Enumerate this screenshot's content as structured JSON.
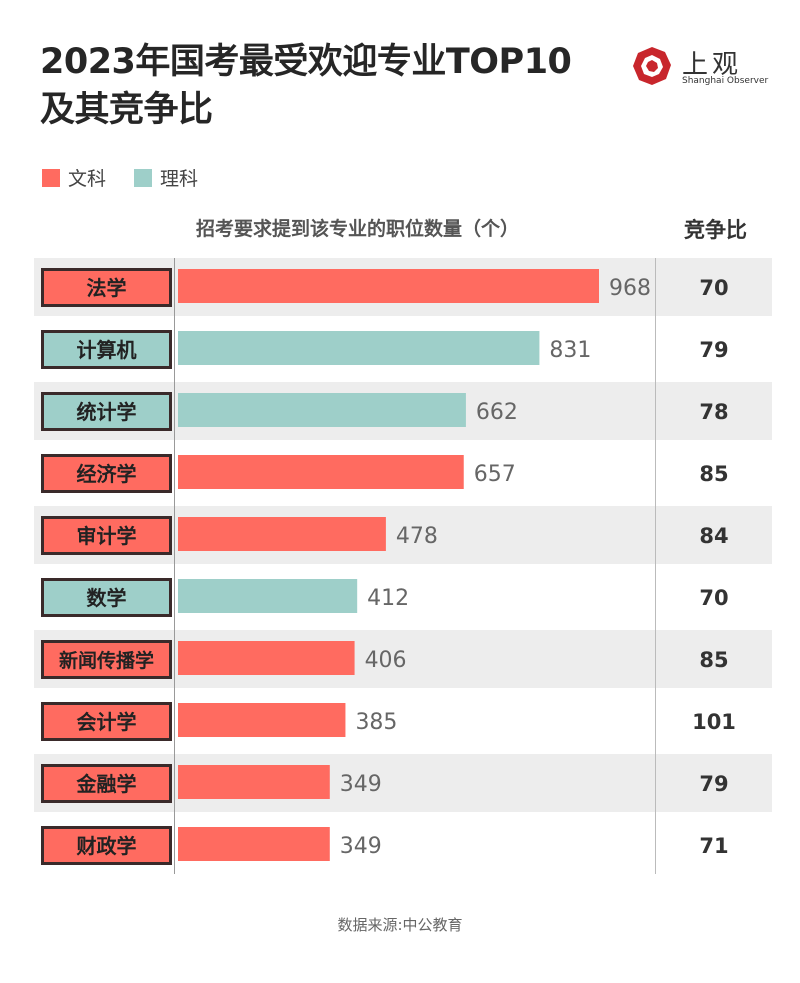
{
  "title_lines": [
    "2023年国考最受欢迎专业TOP10",
    "及其竞争比"
  ],
  "logo": {
    "cn": "上观",
    "en": "Shanghai Observer",
    "icon": "shanghai-observer-logo-icon"
  },
  "legend": [
    {
      "label": "文科",
      "color": "#ff6b60"
    },
    {
      "label": "理科",
      "color": "#9ecfc9"
    }
  ],
  "axis_title": "招考要求提到该专业的职位数量（个）",
  "ratio_title": "竞争比",
  "source": "数据来源:中公教育",
  "colors": {
    "arts": "#ff6b60",
    "science": "#9ecfc9",
    "stripe": "#ededed",
    "label_border": "#3a2a2a"
  },
  "chart_data": {
    "type": "bar",
    "orientation": "horizontal",
    "categories": [
      "法学",
      "计算机",
      "统计学",
      "经济学",
      "审计学",
      "数学",
      "新闻传播学",
      "会计学",
      "金融学",
      "财政学"
    ],
    "values": [
      968,
      831,
      662,
      657,
      478,
      412,
      406,
      385,
      349,
      349
    ],
    "groups": [
      "文科",
      "理科",
      "理科",
      "文科",
      "文科",
      "理科",
      "文科",
      "文科",
      "文科",
      "文科"
    ],
    "competition_ratio": [
      70,
      79,
      78,
      85,
      84,
      70,
      85,
      101,
      79,
      71
    ],
    "xlabel": "招考要求提到该专业的职位数量（个）",
    "legend_position": "top-left"
  }
}
